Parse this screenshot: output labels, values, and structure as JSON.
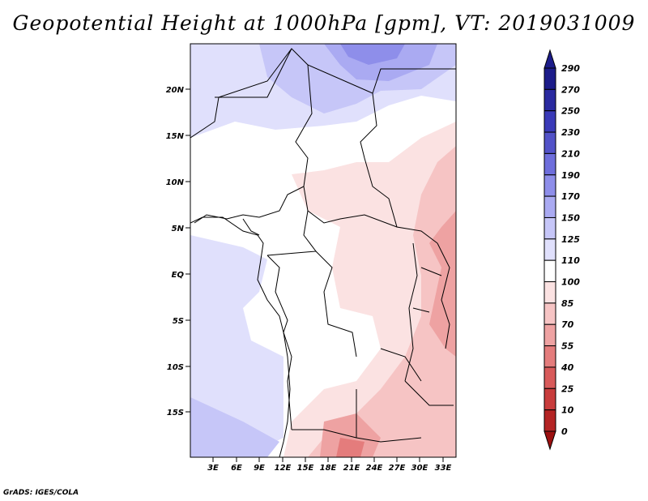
{
  "title": "Geopotential Height at 1000hPa [gpm], VT: 2019031009",
  "credit": "GrADS: IGES/COLA",
  "map": {
    "lat_labels": [
      "20N",
      "15N",
      "10N",
      "5N",
      "EQ",
      "5S",
      "10S",
      "15S"
    ],
    "lon_labels": [
      "3E",
      "6E",
      "9E",
      "12E",
      "15E",
      "18E",
      "21E",
      "24E",
      "27E",
      "30E",
      "33E"
    ]
  },
  "colorbar": {
    "labels": [
      "290",
      "270",
      "250",
      "230",
      "210",
      "190",
      "170",
      "150",
      "125",
      "110",
      "100",
      "85",
      "70",
      "55",
      "40",
      "25",
      "10",
      "0"
    ],
    "colors": [
      "#1c1c8a",
      "#2a2aa0",
      "#3a3ab8",
      "#5252c8",
      "#6e6edc",
      "#8e8eea",
      "#aaaaf2",
      "#c6c6f8",
      "#e0e0fc",
      "#ffffff",
      "#fbe2e2",
      "#f6c4c4",
      "#eea2a2",
      "#e47c7c",
      "#d85a5a",
      "#c83c3c",
      "#b42424",
      "#9c1010"
    ]
  }
}
